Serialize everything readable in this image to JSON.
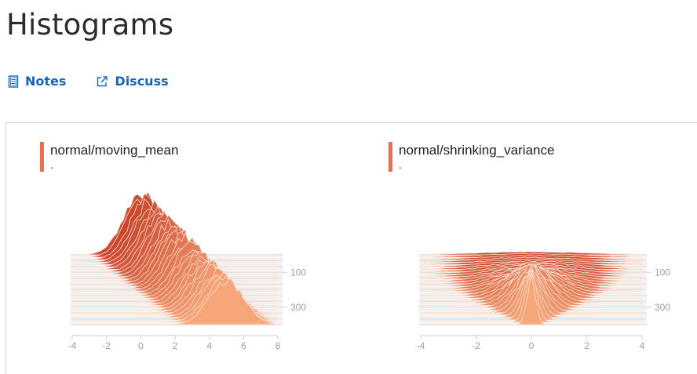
{
  "page": {
    "title": "Histograms"
  },
  "links": [
    {
      "label": "Notes",
      "icon": "notes-icon"
    },
    {
      "label": "Discuss",
      "icon": "external-link-icon"
    }
  ],
  "colors": {
    "accent": "#e8704f",
    "link": "#1565c0",
    "shadeLight": "#f7a679",
    "shadeDark": "#c9432a"
  },
  "chart_data": [
    {
      "type": "histogram-ridgeline",
      "title": "normal/moving_mean",
      "subtitle": ".",
      "x_ticks": [
        -4,
        -2,
        0,
        2,
        4,
        6,
        8
      ],
      "x_range": [
        -4,
        8
      ],
      "step_ticks": [
        100,
        300
      ],
      "step_range": [
        0,
        400
      ],
      "distribution": {
        "mean_start": 0,
        "mean_end": 5,
        "std_start": 1,
        "std_end": 1
      }
    },
    {
      "type": "histogram-ridgeline",
      "title": "normal/shrinking_variance",
      "subtitle": ".",
      "x_ticks": [
        -4,
        -2,
        0,
        2,
        4
      ],
      "x_range": [
        -4,
        4
      ],
      "step_ticks": [
        100,
        300
      ],
      "step_range": [
        0,
        400
      ],
      "distribution": {
        "mean_start": 0,
        "mean_end": 0,
        "std_start": 2,
        "std_end": 0.15
      }
    }
  ]
}
